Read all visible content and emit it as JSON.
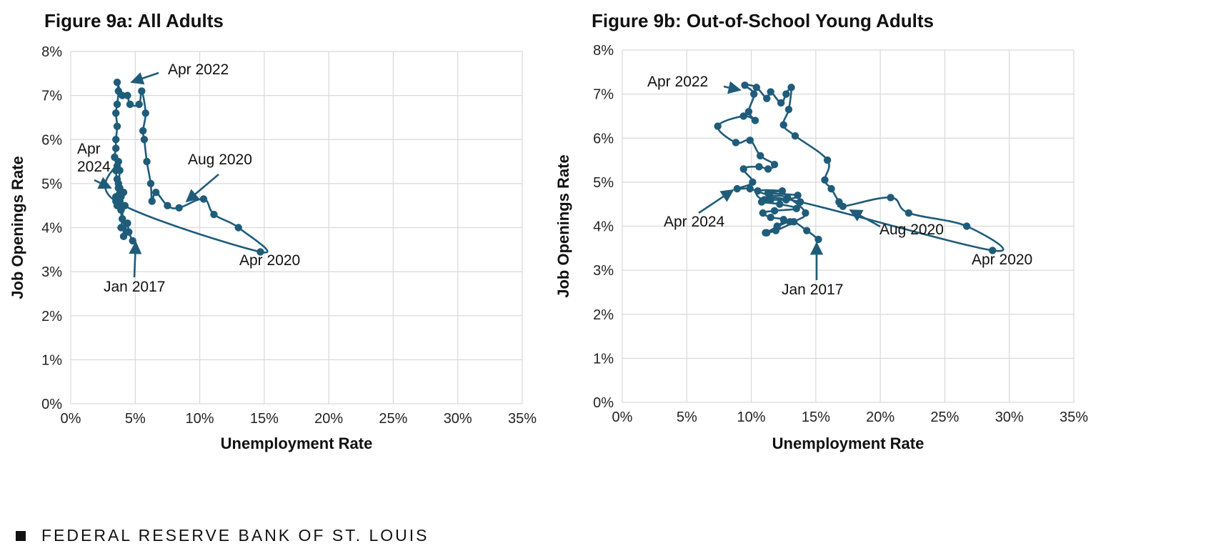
{
  "colors": {
    "series": "#1f5c7a",
    "grid": "#d9d9d9",
    "text": "#111111"
  },
  "footer": {
    "text": "FEDERAL RESERVE BANK OF ST. LOUIS"
  },
  "chart_data": [
    {
      "type": "line",
      "title": "Figure 9a: All Adults",
      "xlabel": "Unemployment Rate",
      "ylabel": "Job Openings Rate",
      "xlim": [
        0,
        35
      ],
      "ylim": [
        0,
        8
      ],
      "x_ticks": [
        "0%",
        "5%",
        "10%",
        "15%",
        "20%",
        "25%",
        "30%",
        "35%"
      ],
      "y_ticks": [
        "0%",
        "1%",
        "2%",
        "3%",
        "4%",
        "5%",
        "6%",
        "7%",
        "8%"
      ],
      "grid": true,
      "points": [
        [
          4.8,
          3.7
        ],
        [
          4.5,
          3.9
        ],
        [
          4.4,
          4.1
        ],
        [
          4.1,
          3.8
        ],
        [
          4.3,
          3.9
        ],
        [
          4.0,
          4.2
        ],
        [
          3.9,
          4.4
        ],
        [
          4.2,
          4.5
        ],
        [
          3.8,
          4.6
        ],
        [
          4.1,
          4.8
        ],
        [
          3.7,
          4.5
        ],
        [
          3.9,
          4.7
        ],
        [
          3.6,
          4.5
        ],
        [
          3.8,
          4.6
        ],
        [
          3.5,
          4.7
        ],
        [
          3.7,
          4.9
        ],
        [
          3.6,
          5.1
        ],
        [
          3.5,
          5.3
        ],
        [
          3.7,
          5.5
        ],
        [
          3.5,
          4.6
        ],
        [
          14.7,
          3.45
        ],
        [
          13.0,
          4.0
        ],
        [
          11.1,
          4.3
        ],
        [
          10.3,
          4.65
        ],
        [
          8.4,
          4.45
        ],
        [
          7.5,
          4.5
        ],
        [
          6.6,
          4.8
        ],
        [
          6.3,
          4.6
        ],
        [
          6.2,
          5.0
        ],
        [
          5.9,
          5.5
        ],
        [
          5.7,
          6.0
        ],
        [
          5.6,
          6.2
        ],
        [
          5.8,
          6.6
        ],
        [
          5.5,
          7.1
        ],
        [
          5.3,
          6.8
        ],
        [
          4.6,
          6.8
        ],
        [
          4.4,
          7.0
        ],
        [
          4.0,
          7.0
        ],
        [
          3.6,
          7.3
        ],
        [
          3.7,
          7.1
        ],
        [
          3.6,
          6.8
        ],
        [
          3.5,
          6.6
        ],
        [
          3.6,
          6.3
        ],
        [
          3.5,
          6.0
        ],
        [
          3.5,
          5.8
        ],
        [
          3.4,
          5.6
        ],
        [
          3.6,
          5.4
        ],
        [
          3.8,
          5.3
        ],
        [
          3.7,
          5.0
        ],
        [
          3.8,
          4.9
        ],
        [
          3.9,
          4.8
        ],
        [
          3.8,
          4.6
        ],
        [
          3.9,
          4.4
        ],
        [
          4.0,
          4.5
        ],
        [
          4.0,
          4.2
        ],
        [
          3.9,
          4.0
        ]
      ],
      "annotations": [
        "Apr 2022",
        "Apr 2024",
        "Aug 2020",
        "Apr 2020",
        "Jan 2017"
      ]
    },
    {
      "type": "line",
      "title": "Figure 9b: Out-of-School Young Adults",
      "xlabel": "Unemployment Rate",
      "ylabel": "Job Openings Rate",
      "xlim": [
        0,
        35
      ],
      "ylim": [
        0,
        8
      ],
      "x_ticks": [
        "0%",
        "5%",
        "10%",
        "15%",
        "20%",
        "25%",
        "30%",
        "35%"
      ],
      "y_ticks": [
        "0%",
        "1%",
        "2%",
        "3%",
        "4%",
        "5%",
        "6%",
        "7%",
        "8%"
      ],
      "grid": true,
      "points": [
        [
          15.2,
          3.7
        ],
        [
          14.3,
          3.9
        ],
        [
          13.0,
          4.1
        ],
        [
          11.2,
          3.85
        ],
        [
          12.0,
          4.0
        ],
        [
          12.5,
          4.15
        ],
        [
          11.5,
          4.2
        ],
        [
          10.9,
          4.3
        ],
        [
          11.8,
          4.35
        ],
        [
          13.5,
          4.4
        ],
        [
          12.2,
          4.5
        ],
        [
          10.8,
          4.55
        ],
        [
          11.5,
          4.6
        ],
        [
          12.7,
          4.6
        ],
        [
          13.6,
          4.7
        ],
        [
          11.3,
          4.75
        ],
        [
          12.4,
          4.8
        ],
        [
          10.5,
          4.8
        ],
        [
          11.0,
          4.6
        ],
        [
          13.8,
          4.55
        ],
        [
          28.7,
          3.45
        ],
        [
          26.7,
          4.0
        ],
        [
          22.2,
          4.3
        ],
        [
          20.8,
          4.65
        ],
        [
          17.1,
          4.45
        ],
        [
          16.8,
          4.55
        ],
        [
          16.2,
          4.85
        ],
        [
          15.7,
          5.05
        ],
        [
          15.9,
          5.5
        ],
        [
          13.4,
          6.05
        ],
        [
          12.5,
          6.3
        ],
        [
          12.9,
          6.65
        ],
        [
          13.1,
          7.15
        ],
        [
          12.7,
          7.0
        ],
        [
          12.3,
          6.8
        ],
        [
          11.5,
          7.05
        ],
        [
          11.2,
          6.9
        ],
        [
          10.4,
          7.15
        ],
        [
          9.5,
          7.2
        ],
        [
          10.2,
          7.0
        ],
        [
          9.8,
          6.6
        ],
        [
          10.3,
          6.4
        ],
        [
          9.4,
          6.5
        ],
        [
          7.4,
          6.27
        ],
        [
          8.8,
          5.9
        ],
        [
          9.9,
          5.95
        ],
        [
          10.7,
          5.6
        ],
        [
          11.8,
          5.4
        ],
        [
          11.3,
          5.3
        ],
        [
          10.6,
          5.35
        ],
        [
          9.4,
          5.3
        ],
        [
          10.1,
          5.0
        ],
        [
          8.9,
          4.85
        ],
        [
          9.9,
          4.85
        ],
        [
          11.4,
          4.7
        ],
        [
          12.8,
          4.65
        ],
        [
          14.2,
          4.3
        ],
        [
          13.3,
          4.1
        ],
        [
          11.9,
          3.9
        ],
        [
          11.1,
          3.85
        ]
      ],
      "annotations": [
        "Apr 2022",
        "Apr 2024",
        "Aug 2020",
        "Apr 2020",
        "Jan 2017"
      ]
    }
  ]
}
